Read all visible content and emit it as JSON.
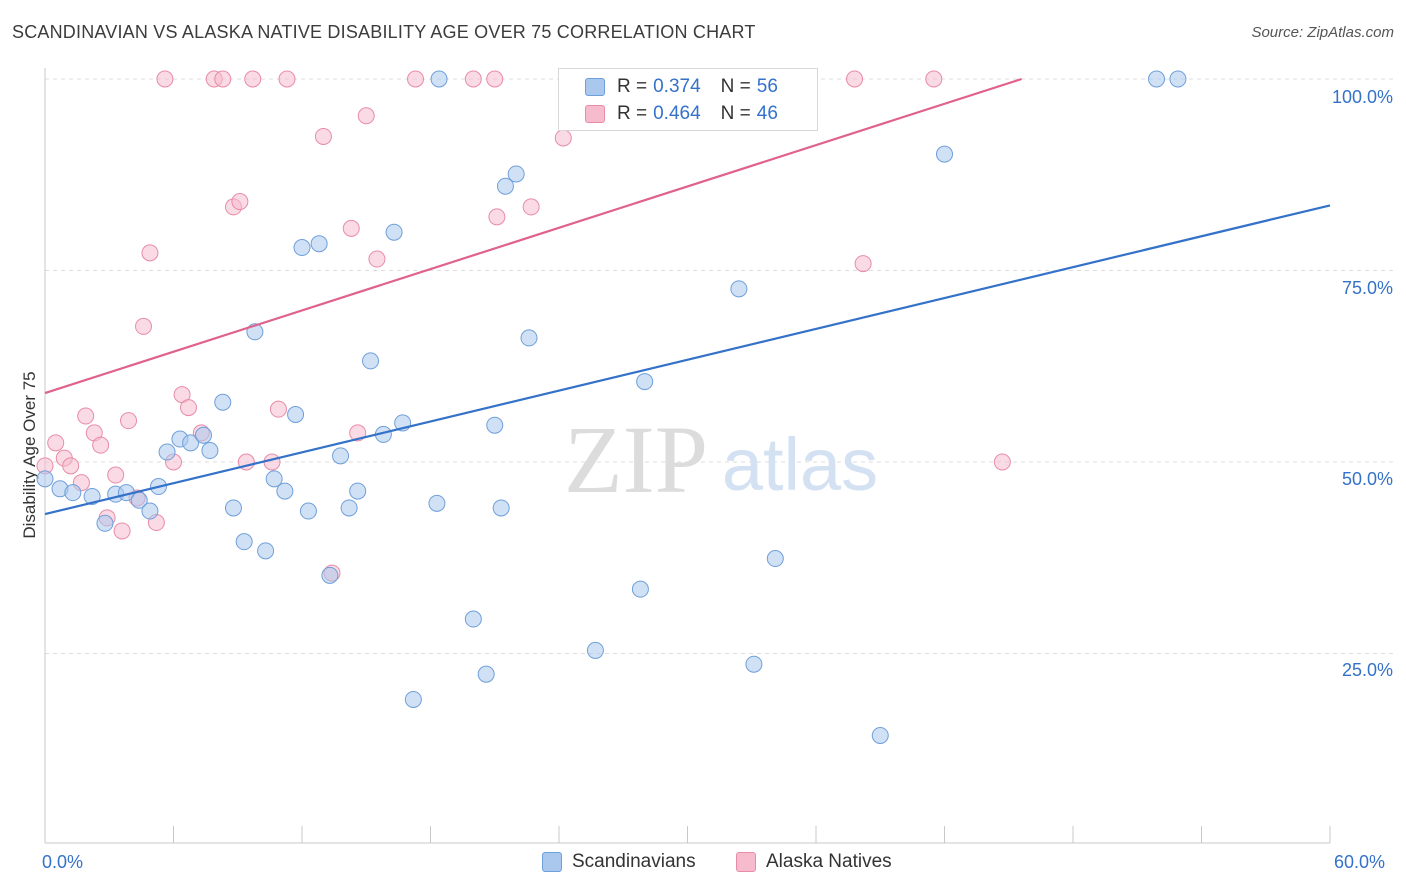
{
  "title": "SCANDINAVIAN VS ALASKA NATIVE DISABILITY AGE OVER 75 CORRELATION CHART",
  "source": "Source: ZipAtlas.com",
  "watermark": {
    "zip": "ZIP",
    "atlas": "atlas"
  },
  "legend": {
    "rows": [
      {
        "r_label": "R = ",
        "r_value": "0.374",
        "n_label": "N = ",
        "n_value": "56"
      },
      {
        "r_label": "R = ",
        "r_value": "0.464",
        "n_label": "N = ",
        "n_value": "46"
      }
    ]
  },
  "colors": {
    "blue_fill": "#aac8ee",
    "blue_stroke": "#6f9fd9",
    "blue_line": "#3472c9",
    "pink_fill": "#f6bccd",
    "pink_stroke": "#e88ca7",
    "pink_line": "#e0628a",
    "tick_label": "#3472c9",
    "grid": "#dddddd"
  },
  "chart_data": {
    "type": "scatter",
    "title": "SCANDINAVIAN VS ALASKA NATIVE DISABILITY AGE OVER 75 CORRELATION CHART",
    "xlabel": "",
    "ylabel": "Disability Age Over 75",
    "xlim": [
      0,
      60
    ],
    "ylim": [
      0,
      105
    ],
    "x_tick_labels": [
      "0.0%",
      "60.0%"
    ],
    "y_tick_labels": [
      "25.0%",
      "50.0%",
      "75.0%",
      "100.0%"
    ],
    "y_ticks": [
      25,
      50,
      75,
      100
    ],
    "grid": true,
    "legend_position": "top-center",
    "series": [
      {
        "name": "Scandinavians",
        "color": "#aac8ee",
        "trend": {
          "x": [
            0,
            60
          ],
          "y": [
            43.2,
            83.5
          ]
        },
        "points": [
          [
            0.0,
            47.8
          ],
          [
            0.7,
            46.5
          ],
          [
            1.3,
            46.0
          ],
          [
            2.2,
            45.5
          ],
          [
            2.8,
            42.0
          ],
          [
            3.3,
            45.8
          ],
          [
            3.8,
            46.0
          ],
          [
            4.4,
            45.0
          ],
          [
            4.9,
            43.6
          ],
          [
            5.3,
            46.8
          ],
          [
            5.7,
            51.3
          ],
          [
            6.3,
            53.0
          ],
          [
            6.8,
            52.5
          ],
          [
            7.4,
            53.5
          ],
          [
            7.7,
            51.5
          ],
          [
            8.3,
            57.8
          ],
          [
            8.8,
            44.0
          ],
          [
            9.3,
            39.6
          ],
          [
            9.8,
            67.0
          ],
          [
            10.3,
            38.4
          ],
          [
            10.7,
            47.8
          ],
          [
            11.2,
            46.2
          ],
          [
            11.7,
            56.2
          ],
          [
            12.3,
            43.6
          ],
          [
            12.8,
            78.5
          ],
          [
            13.3,
            35.2
          ],
          [
            13.8,
            50.8
          ],
          [
            14.2,
            44.0
          ],
          [
            14.6,
            46.2
          ],
          [
            15.2,
            63.2
          ],
          [
            15.8,
            53.6
          ],
          [
            16.3,
            80.0
          ],
          [
            16.7,
            55.1
          ],
          [
            17.2,
            19.0
          ],
          [
            18.3,
            44.6
          ],
          [
            18.4,
            100.0
          ],
          [
            20.0,
            29.5
          ],
          [
            20.6,
            22.3
          ],
          [
            21.0,
            54.8
          ],
          [
            21.3,
            44.0
          ],
          [
            22.0,
            87.6
          ],
          [
            22.6,
            66.2
          ],
          [
            25.7,
            25.4
          ],
          [
            27.3,
            100.0
          ],
          [
            27.8,
            33.4
          ],
          [
            28.0,
            60.5
          ],
          [
            31.0,
            100.0
          ],
          [
            32.4,
            72.6
          ],
          [
            33.1,
            23.6
          ],
          [
            34.1,
            37.4
          ],
          [
            39.0,
            14.3
          ],
          [
            42.0,
            90.2
          ],
          [
            51.9,
            100.0
          ],
          [
            52.9,
            100.0
          ],
          [
            21.5,
            86.0
          ],
          [
            12.0,
            78.0
          ]
        ]
      },
      {
        "name": "Alaska Natives",
        "color": "#f6bccd",
        "trend": {
          "x": [
            0,
            45.6
          ],
          "y": [
            59.0,
            100.0
          ]
        },
        "points": [
          [
            0.0,
            49.5
          ],
          [
            0.5,
            52.5
          ],
          [
            0.9,
            50.5
          ],
          [
            1.2,
            49.5
          ],
          [
            1.7,
            47.3
          ],
          [
            1.9,
            56.0
          ],
          [
            2.3,
            53.8
          ],
          [
            2.6,
            52.2
          ],
          [
            2.9,
            42.7
          ],
          [
            3.3,
            48.3
          ],
          [
            3.6,
            41.0
          ],
          [
            3.9,
            55.4
          ],
          [
            4.3,
            45.3
          ],
          [
            4.6,
            67.7
          ],
          [
            4.9,
            77.3
          ],
          [
            5.2,
            42.1
          ],
          [
            5.6,
            100.0
          ],
          [
            6.0,
            50.0
          ],
          [
            6.4,
            58.8
          ],
          [
            6.7,
            57.1
          ],
          [
            7.3,
            53.8
          ],
          [
            7.9,
            100.0
          ],
          [
            8.3,
            100.0
          ],
          [
            8.8,
            83.3
          ],
          [
            9.1,
            84.0
          ],
          [
            9.4,
            50.0
          ],
          [
            9.7,
            100.0
          ],
          [
            10.6,
            50.0
          ],
          [
            10.9,
            56.9
          ],
          [
            11.3,
            100.0
          ],
          [
            13.0,
            92.5
          ],
          [
            13.4,
            35.5
          ],
          [
            14.3,
            80.5
          ],
          [
            14.6,
            53.8
          ],
          [
            15.0,
            95.2
          ],
          [
            15.5,
            76.5
          ],
          [
            17.3,
            100.0
          ],
          [
            20.0,
            100.0
          ],
          [
            21.1,
            82.0
          ],
          [
            22.7,
            83.3
          ],
          [
            24.2,
            92.3
          ],
          [
            37.8,
            100.0
          ],
          [
            38.2,
            75.9
          ],
          [
            41.5,
            100.0
          ],
          [
            44.7,
            50.0
          ],
          [
            21.0,
            100.0
          ]
        ]
      }
    ]
  }
}
